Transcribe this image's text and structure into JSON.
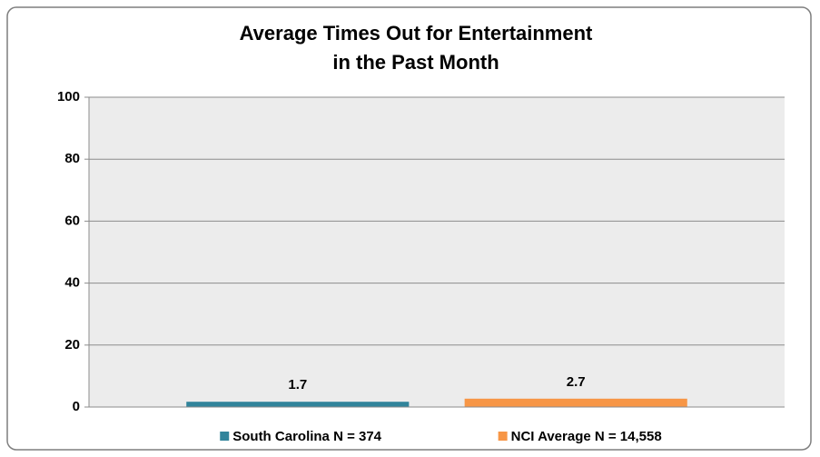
{
  "chart_data": {
    "type": "bar",
    "title": [
      "Average Times Out for Entertainment",
      "in the Past Month"
    ],
    "categories": [
      null
    ],
    "series": [
      {
        "name": "South Carolina N = 374",
        "color": "#31849b",
        "values": [
          1.7
        ]
      },
      {
        "name": "NCI Average N = 14,558",
        "color": "#f79646",
        "values": [
          2.7
        ]
      }
    ],
    "ylim": [
      0,
      100
    ],
    "yticks": [
      0,
      20,
      40,
      60,
      80,
      100
    ],
    "grid": true,
    "legend": "bottom"
  }
}
